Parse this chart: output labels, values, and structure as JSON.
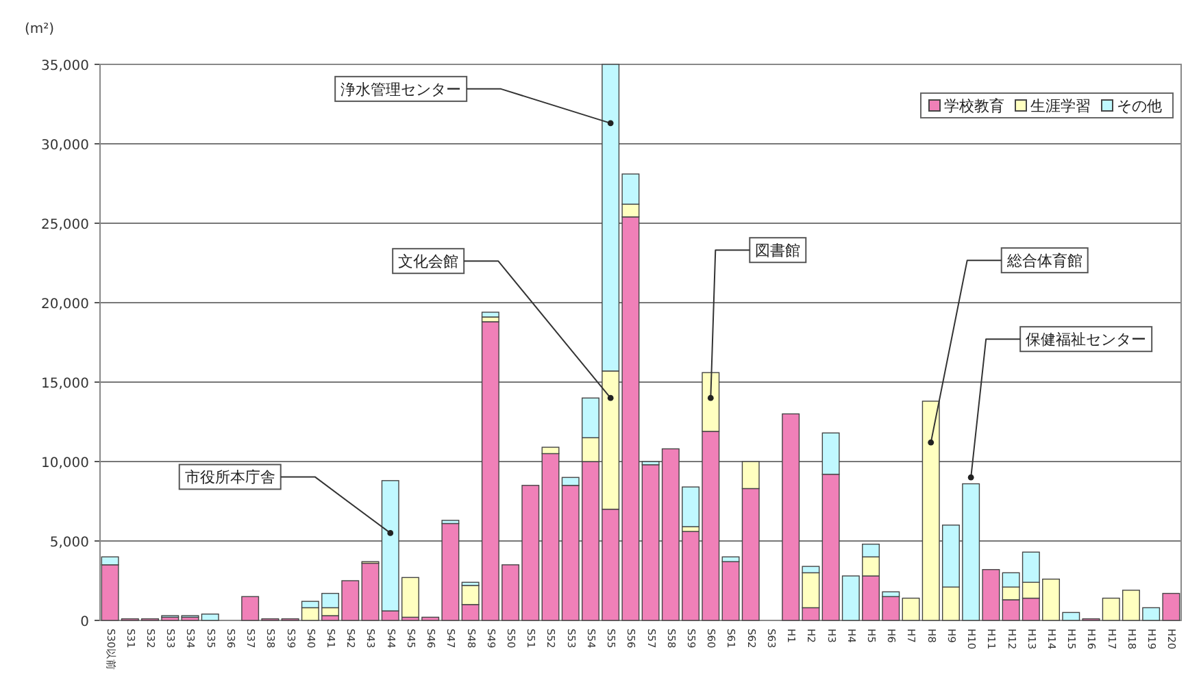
{
  "chart_data": {
    "type": "bar",
    "stacked": true,
    "ylabel": "(m²)",
    "categories": [
      "S30以前",
      "S31",
      "S32",
      "S33",
      "S34",
      "S35",
      "S36",
      "S37",
      "S38",
      "S39",
      "S40",
      "S41",
      "S42",
      "S43",
      "S44",
      "S45",
      "S46",
      "S47",
      "S48",
      "S49",
      "S50",
      "S51",
      "S52",
      "S53",
      "S54",
      "S55",
      "S56",
      "S57",
      "S58",
      "S59",
      "S60",
      "S61",
      "S62",
      "S63",
      "H1",
      "H2",
      "H3",
      "H4",
      "H5",
      "H6",
      "H7",
      "H8",
      "H9",
      "H10",
      "H11",
      "H12",
      "H13",
      "H14",
      "H15",
      "H16",
      "H17",
      "H18",
      "H19",
      "H20"
    ],
    "series": [
      {
        "name": "学校教育",
        "color": "#f080b8",
        "values": [
          3500,
          100,
          100,
          200,
          200,
          0,
          0,
          1500,
          100,
          100,
          0,
          300,
          2500,
          3600,
          600,
          200,
          200,
          6100,
          1000,
          18800,
          3500,
          8500,
          10500,
          8500,
          10000,
          7000,
          25400,
          9800,
          10800,
          5600,
          11900,
          3700,
          8300,
          0,
          13000,
          800,
          9200,
          0,
          2800,
          1500,
          0,
          0,
          0,
          0,
          3200,
          1300,
          1400,
          0,
          0,
          100,
          0,
          0,
          0,
          1700
        ]
      },
      {
        "name": "生涯学習",
        "color": "#ffffc0",
        "values": [
          0,
          0,
          0,
          0,
          0,
          0,
          0,
          0,
          0,
          0,
          800,
          500,
          0,
          100,
          0,
          2500,
          0,
          0,
          1200,
          300,
          0,
          0,
          400,
          0,
          1500,
          8700,
          800,
          0,
          0,
          300,
          3700,
          0,
          1700,
          0,
          0,
          2200,
          0,
          0,
          1200,
          0,
          1400,
          13800,
          2100,
          0,
          0,
          800,
          1000,
          2600,
          0,
          0,
          1400,
          1900,
          0,
          0
        ]
      },
      {
        "name": "その他",
        "color": "#c0f8ff",
        "values": [
          500,
          0,
          0,
          100,
          100,
          400,
          0,
          0,
          0,
          0,
          400,
          900,
          0,
          0,
          8200,
          0,
          0,
          200,
          200,
          300,
          0,
          0,
          0,
          500,
          2500,
          19300,
          1900,
          200,
          0,
          2500,
          0,
          300,
          0,
          0,
          0,
          400,
          2600,
          2800,
          800,
          300,
          0,
          0,
          3900,
          8600,
          0,
          900,
          1900,
          0,
          500,
          0,
          0,
          0,
          800,
          0
        ]
      }
    ],
    "ylim": [
      0,
      35000
    ],
    "yticks": [
      0,
      {
        "value": 5000,
        "label": "5,000"
      },
      {
        "value": 10000,
        "label": "10,000"
      },
      {
        "value": 15000,
        "label": "15,000"
      },
      {
        "value": 20000,
        "label": "20,000"
      },
      {
        "value": 25000,
        "label": "25,000"
      },
      {
        "value": 30000,
        "label": "30,000"
      },
      {
        "value": 35000,
        "label": "35,000"
      }
    ],
    "grid": "y",
    "legend": "top right",
    "annotations": [
      {
        "text": "市役所本庁舎",
        "x": "S44",
        "y": 5500
      },
      {
        "text": "浄水管理センター",
        "x": "S55",
        "y": 31300
      },
      {
        "text": "文化会館",
        "x": "S55",
        "y": 14000
      },
      {
        "text": "図書館",
        "x": "S60",
        "y": 14000
      },
      {
        "text": "総合体育館",
        "x": "H8",
        "y": 11200
      },
      {
        "text": "保健福祉センター",
        "x": "H10",
        "y": 9000
      }
    ]
  }
}
